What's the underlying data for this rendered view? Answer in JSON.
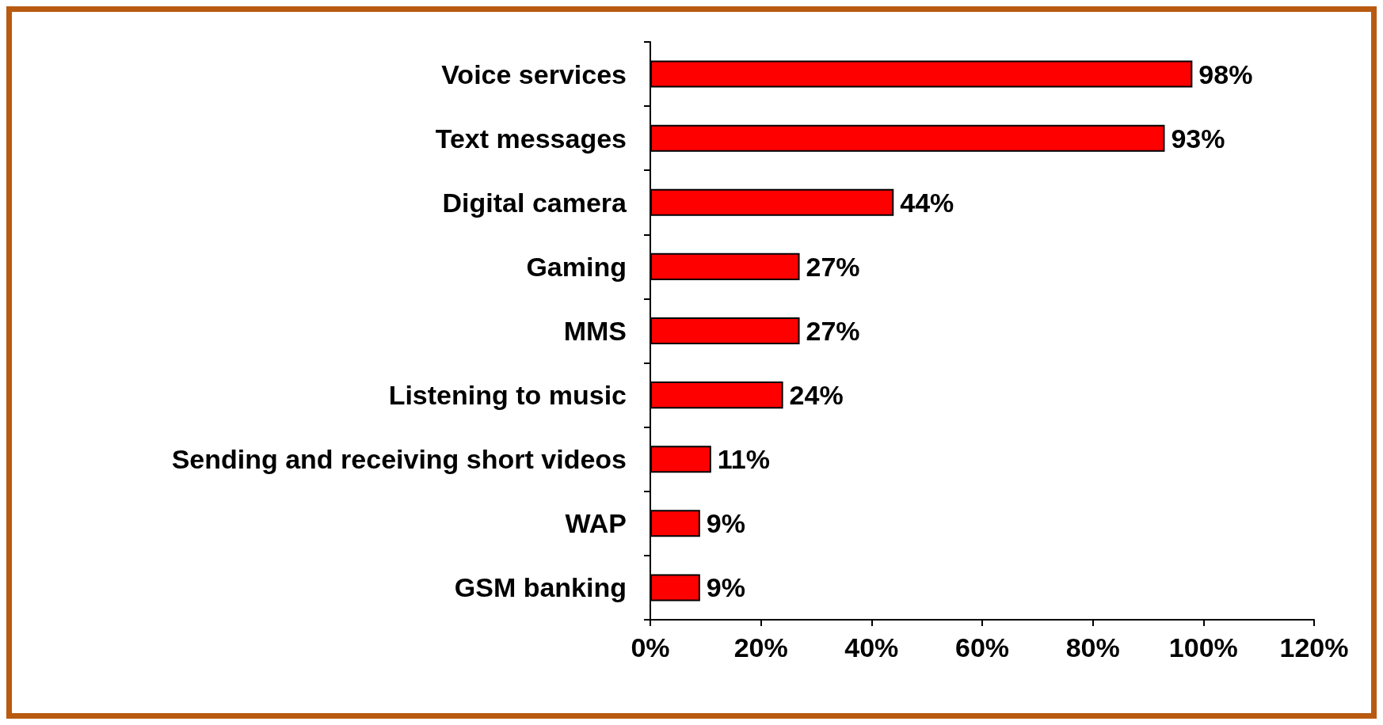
{
  "chart_data": {
    "type": "bar",
    "orientation": "horizontal",
    "categories": [
      "Voice services",
      "Text messages",
      "Digital camera",
      "Gaming",
      "MMS",
      "Listening to music",
      "Sending and receiving short videos",
      "WAP",
      "GSM banking"
    ],
    "values": [
      98,
      93,
      44,
      27,
      27,
      24,
      11,
      9,
      9
    ],
    "value_labels": [
      "98%",
      "93%",
      "44%",
      "27%",
      "27%",
      "24%",
      "11%",
      "9%",
      "9%"
    ],
    "color": "#ff0000",
    "xlim": [
      0,
      120
    ],
    "xticks": [
      {
        "value": 0,
        "label": "0%"
      },
      {
        "value": 20,
        "label": "20%"
      },
      {
        "value": 40,
        "label": "40%"
      },
      {
        "value": 60,
        "label": "60%"
      },
      {
        "value": 80,
        "label": "80%"
      },
      {
        "value": 100,
        "label": "100%"
      },
      {
        "value": 120,
        "label": "120%"
      }
    ],
    "grid": false
  }
}
